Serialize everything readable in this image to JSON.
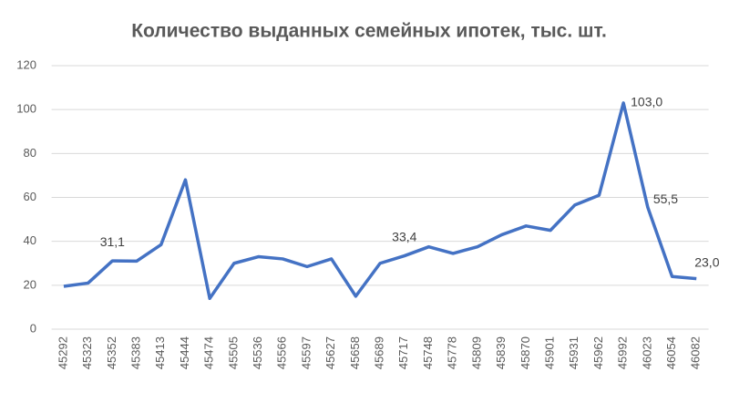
{
  "chart_data": {
    "type": "line",
    "title": "Количество выданных семейных ипотек, тыс. шт.",
    "categories": [
      "45292",
      "45323",
      "45352",
      "45383",
      "45413",
      "45444",
      "45474",
      "45505",
      "45536",
      "45566",
      "45597",
      "45627",
      "45658",
      "45689",
      "45717",
      "45748",
      "45778",
      "45809",
      "45839",
      "45870",
      "45901",
      "45931",
      "45962",
      "45992",
      "46023",
      "46054",
      "46082"
    ],
    "series": [
      {
        "color": "#4472c4",
        "values": [
          19.5,
          21,
          31.1,
          31,
          38.5,
          68,
          14,
          30,
          33,
          32,
          28.5,
          32,
          15,
          30,
          33.4,
          37.5,
          34.5,
          37.5,
          43,
          47,
          45,
          56.5,
          61,
          103,
          55.5,
          24,
          23
        ],
        "value_labels": [
          null,
          null,
          "31,1",
          null,
          null,
          null,
          null,
          null,
          null,
          null,
          null,
          null,
          null,
          null,
          "33,4",
          null,
          null,
          null,
          null,
          null,
          null,
          null,
          null,
          "103,0",
          "55,5",
          null,
          "23,0"
        ]
      }
    ],
    "ylim": [
      0,
      120
    ],
    "yticks": [
      0,
      20,
      40,
      60,
      80,
      100,
      120
    ],
    "grid": true
  }
}
